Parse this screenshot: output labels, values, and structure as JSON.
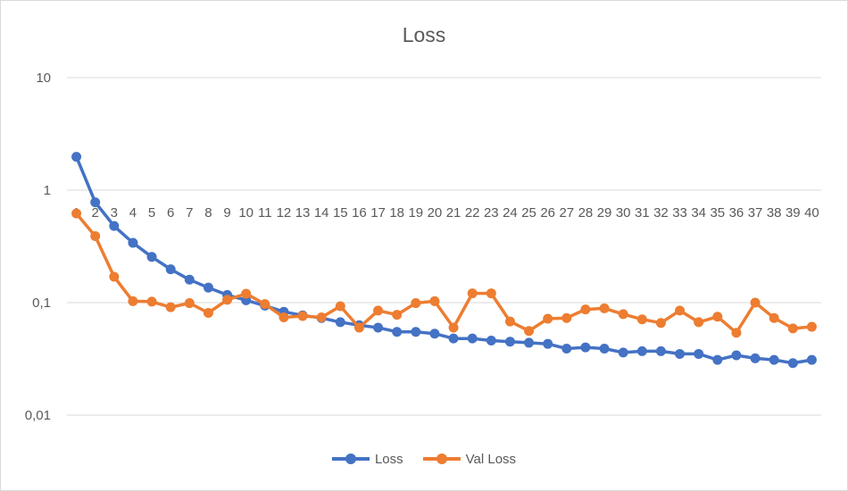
{
  "chart_data": {
    "type": "line",
    "title": "Loss",
    "xlabel": "",
    "ylabel": "",
    "y_scale": "log",
    "ylim": [
      0.01,
      10
    ],
    "y_ticks": [
      {
        "value": 10,
        "label": "10"
      },
      {
        "value": 1,
        "label": "1"
      },
      {
        "value": 0.1,
        "label": "0,1"
      },
      {
        "value": 0.01,
        "label": "0,01"
      }
    ],
    "grid": true,
    "legend_position": "bottom",
    "categories": [
      "1",
      "2",
      "3",
      "4",
      "5",
      "6",
      "7",
      "8",
      "9",
      "10",
      "11",
      "12",
      "13",
      "14",
      "15",
      "16",
      "17",
      "18",
      "19",
      "20",
      "21",
      "22",
      "23",
      "24",
      "25",
      "26",
      "27",
      "28",
      "29",
      "30",
      "31",
      "32",
      "33",
      "34",
      "35",
      "36",
      "37",
      "38",
      "39",
      "40"
    ],
    "series": [
      {
        "name": "Loss",
        "color": "#4472c4",
        "values": [
          1.98,
          0.78,
          0.48,
          0.34,
          0.255,
          0.198,
          0.16,
          0.136,
          0.117,
          0.105,
          0.094,
          0.083,
          0.077,
          0.073,
          0.067,
          0.063,
          0.06,
          0.055,
          0.055,
          0.053,
          0.048,
          0.048,
          0.046,
          0.045,
          0.044,
          0.043,
          0.039,
          0.04,
          0.039,
          0.036,
          0.037,
          0.037,
          0.035,
          0.035,
          0.031,
          0.034,
          0.032,
          0.031,
          0.029,
          0.031
        ]
      },
      {
        "name": "Val Loss",
        "color": "#ed7d31",
        "values": [
          0.62,
          0.39,
          0.17,
          0.103,
          0.102,
          0.091,
          0.099,
          0.081,
          0.106,
          0.12,
          0.097,
          0.074,
          0.076,
          0.074,
          0.093,
          0.06,
          0.085,
          0.078,
          0.099,
          0.103,
          0.06,
          0.121,
          0.121,
          0.068,
          0.056,
          0.072,
          0.073,
          0.087,
          0.089,
          0.079,
          0.071,
          0.066,
          0.085,
          0.067,
          0.075,
          0.054,
          0.1,
          0.073,
          0.059,
          0.061
        ]
      }
    ]
  }
}
